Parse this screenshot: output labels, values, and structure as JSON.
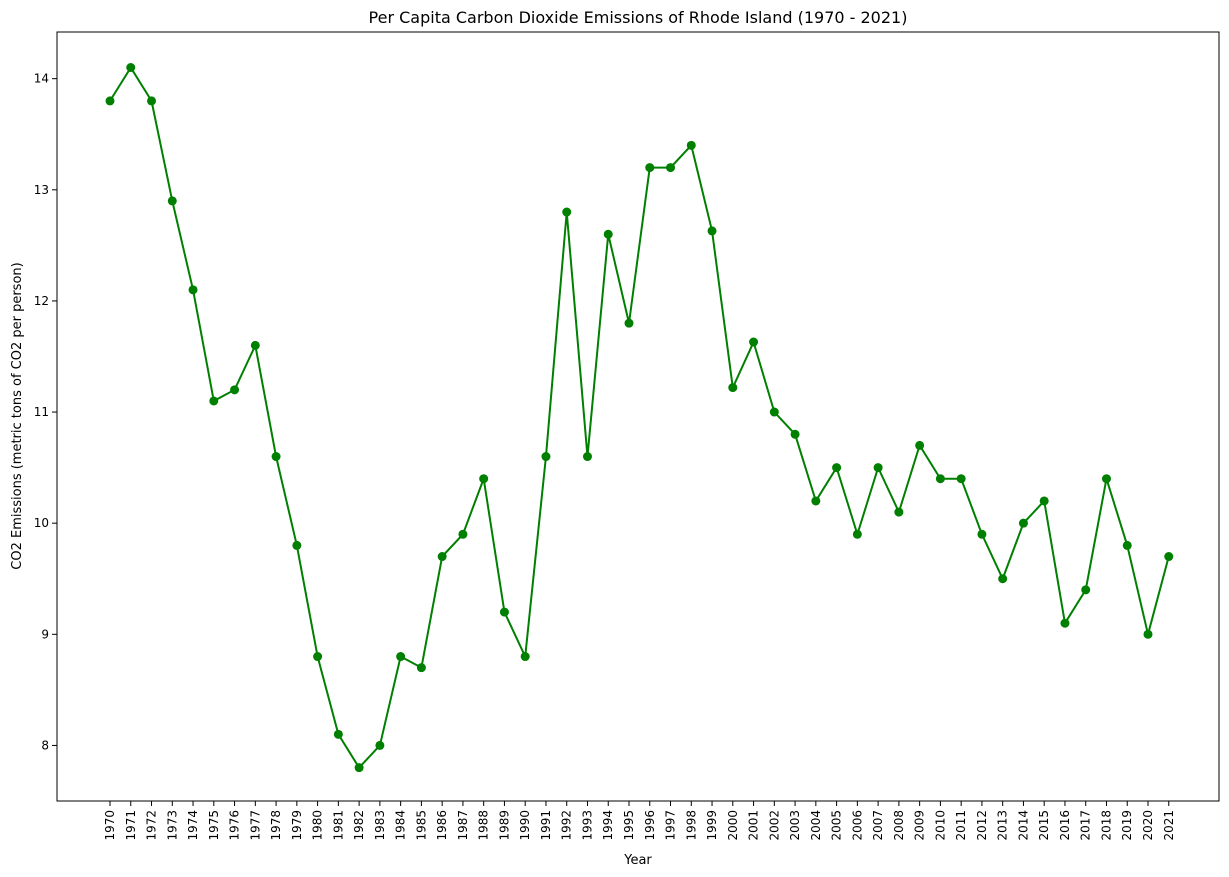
{
  "chart_data": {
    "type": "line",
    "title": "Per Capita Carbon Dioxide Emissions of Rhode Island (1970 - 2021)",
    "xlabel": "Year",
    "ylabel": "CO2 Emissions (metric tons of CO2 per person)",
    "ylim": [
      7.5,
      14.42
    ],
    "yticks": [
      8,
      9,
      10,
      11,
      12,
      13,
      14
    ],
    "grid": false,
    "line_color": "#008000",
    "marker": "circle",
    "x": [
      "1970",
      "1971",
      "1972",
      "1973",
      "1974",
      "1975",
      "1976",
      "1977",
      "1978",
      "1979",
      "1980",
      "1981",
      "1982",
      "1983",
      "1984",
      "1985",
      "1986",
      "1987",
      "1988",
      "1989",
      "1990",
      "1991",
      "1992",
      "1993",
      "1994",
      "1995",
      "1996",
      "1997",
      "1998",
      "1999",
      "2000",
      "2001",
      "2002",
      "2003",
      "2004",
      "2005",
      "2006",
      "2007",
      "2008",
      "2009",
      "2010",
      "2011",
      "2012",
      "2013",
      "2014",
      "2015",
      "2016",
      "2017",
      "2018",
      "2019",
      "2020",
      "2021"
    ],
    "series": [
      {
        "values": [
          13.8,
          14.1,
          13.8,
          12.9,
          12.1,
          11.1,
          11.2,
          11.6,
          10.6,
          9.8,
          8.8,
          8.1,
          7.8,
          8.0,
          8.8,
          8.7,
          9.7,
          9.9,
          10.4,
          9.2,
          8.8,
          10.6,
          12.8,
          10.6,
          12.6,
          11.8,
          13.2,
          13.2,
          13.4,
          12.63,
          11.22,
          11.63,
          11.0,
          10.8,
          10.2,
          10.5,
          9.9,
          10.5,
          10.1,
          10.7,
          10.4,
          10.4,
          9.9,
          9.5,
          10.0,
          10.2,
          9.1,
          9.4,
          10.4,
          9.8,
          9.0,
          9.7
        ]
      }
    ]
  }
}
